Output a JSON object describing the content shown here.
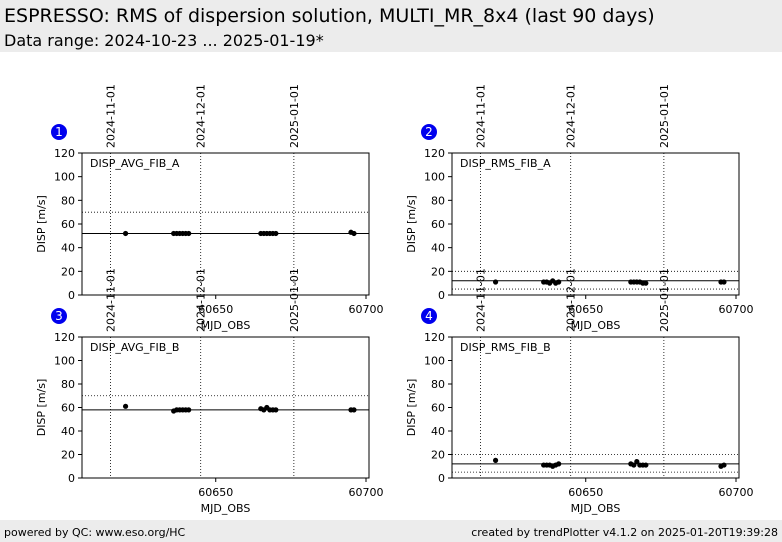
{
  "header": {
    "title": "ESPRESSO: RMS of dispersion solution, MULTI_MR_8x4 (last 90 days)",
    "subtitle": "Data range: 2024-10-23 ... 2025-01-19*"
  },
  "footer": {
    "left": "powered by QC: www.eso.org/HC",
    "right": "created by trendPlotter v4.1.2 on 2025-01-20T19:39:28"
  },
  "colors": {
    "badge": "#0000ee",
    "points": "#000000",
    "header_bg": "#ececec"
  },
  "chart_data": [
    {
      "id": "1",
      "type": "scatter",
      "label": "DISP_AVG_FIB_A",
      "xlabel": "MJD_OBS",
      "ylabel": "DISP [m/s]",
      "xlim": [
        60605.5,
        60701
      ],
      "ylim": [
        0,
        120
      ],
      "xticks": [
        60650,
        60700
      ],
      "yticks": [
        0,
        20,
        40,
        60,
        80,
        100,
        120
      ],
      "date_markers": [
        {
          "label": "2024-11-01",
          "x": 60615
        },
        {
          "label": "2024-12-01",
          "x": 60645
        },
        {
          "label": "2025-01-01",
          "x": 60676
        }
      ],
      "reference_line": 52,
      "threshold_lines": [
        70
      ],
      "x": [
        60620,
        60636,
        60637,
        60638,
        60639,
        60640,
        60641,
        60665,
        60666,
        60667,
        60668,
        60669,
        60670,
        60695,
        60696
      ],
      "y": [
        52,
        52,
        52,
        52,
        52,
        52,
        52,
        52,
        52,
        52,
        52,
        52,
        52,
        53,
        52
      ]
    },
    {
      "id": "2",
      "type": "scatter",
      "label": "DISP_RMS_FIB_A",
      "xlabel": "MJD_OBS",
      "ylabel": "DISP [m/s]",
      "xlim": [
        60605.5,
        60701
      ],
      "ylim": [
        0,
        120
      ],
      "xticks": [
        60650,
        60700
      ],
      "yticks": [
        0,
        20,
        40,
        60,
        80,
        100,
        120
      ],
      "date_markers": [
        {
          "label": "2024-11-01",
          "x": 60615
        },
        {
          "label": "2024-12-01",
          "x": 60645
        },
        {
          "label": "2025-01-01",
          "x": 60676
        }
      ],
      "reference_line": 12,
      "threshold_lines": [
        20,
        5
      ],
      "x": [
        60620,
        60636,
        60637,
        60638,
        60639,
        60640,
        60641,
        60665,
        60666,
        60667,
        60668,
        60669,
        60670,
        60695,
        60696
      ],
      "y": [
        11,
        11,
        11,
        10,
        12,
        10,
        11,
        11,
        11,
        11,
        11,
        10,
        10,
        11,
        11
      ]
    },
    {
      "id": "3",
      "type": "scatter",
      "label": "DISP_AVG_FIB_B",
      "xlabel": "MJD_OBS",
      "ylabel": "DISP [m/s]",
      "xlim": [
        60605.5,
        60701
      ],
      "ylim": [
        0,
        120
      ],
      "xticks": [
        60650,
        60700
      ],
      "yticks": [
        0,
        20,
        40,
        60,
        80,
        100,
        120
      ],
      "date_markers": [
        {
          "label": "2024-11-01",
          "x": 60615
        },
        {
          "label": "2024-12-01",
          "x": 60645
        },
        {
          "label": "2025-01-01",
          "x": 60676
        }
      ],
      "reference_line": 58,
      "threshold_lines": [
        70
      ],
      "x": [
        60620,
        60636,
        60637,
        60638,
        60639,
        60640,
        60641,
        60665,
        60666,
        60667,
        60668,
        60669,
        60670,
        60695,
        60696
      ],
      "y": [
        61,
        57,
        58,
        58,
        58,
        58,
        58,
        59,
        58,
        60,
        58,
        58,
        58,
        58,
        58
      ]
    },
    {
      "id": "4",
      "type": "scatter",
      "label": "DISP_RMS_FIB_B",
      "xlabel": "MJD_OBS",
      "ylabel": "DISP [m/s]",
      "xlim": [
        60605.5,
        60701
      ],
      "ylim": [
        0,
        120
      ],
      "xticks": [
        60650,
        60700
      ],
      "yticks": [
        0,
        20,
        40,
        60,
        80,
        100,
        120
      ],
      "date_markers": [
        {
          "label": "2024-11-01",
          "x": 60615
        },
        {
          "label": "2024-12-01",
          "x": 60645
        },
        {
          "label": "2025-01-01",
          "x": 60676
        }
      ],
      "reference_line": 12,
      "threshold_lines": [
        20,
        5
      ],
      "x": [
        60620,
        60636,
        60637,
        60638,
        60639,
        60640,
        60641,
        60665,
        60666,
        60667,
        60668,
        60669,
        60670,
        60695,
        60696
      ],
      "y": [
        15,
        11,
        11,
        11,
        10,
        11,
        12,
        12,
        11,
        14,
        11,
        11,
        11,
        10,
        11
      ]
    }
  ]
}
